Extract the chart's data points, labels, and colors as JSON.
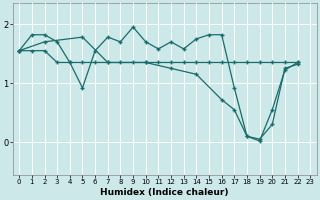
{
  "xlabel": "Humidex (Indice chaleur)",
  "bg_color": "#cce8e8",
  "line_color": "#1a6b6b",
  "grid_color": "#ffffff",
  "red_line_color": "#ff8888",
  "ylim": [
    -0.55,
    2.35
  ],
  "xlim": [
    -0.5,
    23.5
  ],
  "yticks": [
    0,
    1,
    2
  ],
  "xticks": [
    0,
    1,
    2,
    3,
    4,
    5,
    6,
    7,
    8,
    9,
    10,
    11,
    12,
    13,
    14,
    15,
    16,
    17,
    18,
    19,
    20,
    21,
    22,
    23
  ],
  "line1_x": [
    0,
    1,
    2,
    3,
    4,
    5,
    6,
    7,
    8,
    9,
    10,
    11,
    12,
    13,
    14,
    15,
    16,
    17,
    18,
    19,
    20,
    21,
    22
  ],
  "line1_y": [
    1.55,
    1.82,
    1.82,
    1.7,
    1.35,
    0.92,
    1.55,
    1.78,
    1.7,
    1.95,
    1.7,
    1.58,
    1.7,
    1.58,
    1.75,
    1.82,
    1.82,
    0.92,
    0.1,
    0.05,
    0.3,
    1.25,
    1.32
  ],
  "line2_x": [
    0,
    1,
    2,
    3,
    4,
    5,
    6,
    7,
    8,
    9,
    10,
    11,
    12,
    13,
    14,
    15,
    16,
    17,
    18,
    19,
    20,
    21,
    22
  ],
  "line2_y": [
    1.55,
    1.55,
    1.55,
    1.35,
    1.35,
    1.35,
    1.35,
    1.35,
    1.35,
    1.35,
    1.35,
    1.35,
    1.35,
    1.35,
    1.35,
    1.35,
    1.35,
    1.35,
    1.35,
    1.35,
    1.35,
    1.35,
    1.35
  ],
  "line3_x": [
    0,
    2,
    5,
    7,
    10,
    12,
    14,
    16,
    17,
    18,
    19,
    20,
    21,
    22
  ],
  "line3_y": [
    1.55,
    1.7,
    1.78,
    1.35,
    1.35,
    1.25,
    1.15,
    0.72,
    0.55,
    0.1,
    0.02,
    0.55,
    1.22,
    1.35
  ]
}
